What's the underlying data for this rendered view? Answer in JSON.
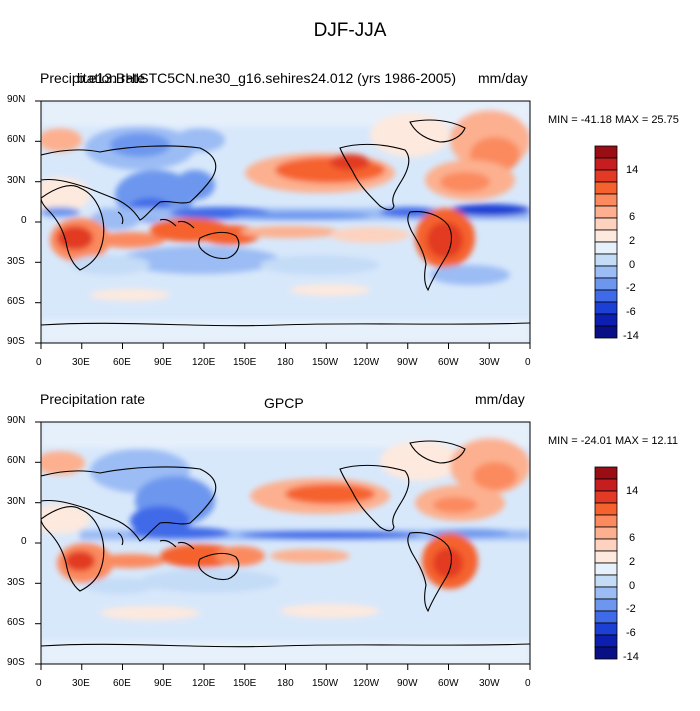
{
  "title": "DJF-JJA",
  "panels": [
    {
      "id": "model",
      "left_title": "Precipitation rate",
      "center_title": "b.e13.BHISTC5CN.ne30_g16.sehires24.012 (yrs 1986-2005)",
      "units": "mm/day",
      "minmax": "MIN = -41.18 MAX =  25.75"
    },
    {
      "id": "obs",
      "left_title": "Precipitation rate",
      "center_title": "GPCP",
      "units": "mm/day",
      "minmax": "MIN = -24.01 MAX =  12.11"
    }
  ],
  "axes": {
    "x_ticks": [
      "0",
      "30E",
      "60E",
      "90E",
      "120E",
      "150E",
      "180",
      "150W",
      "120W",
      "90W",
      "60W",
      "30W",
      "0"
    ],
    "y_ticks": [
      "90N",
      "60N",
      "30N",
      "0",
      "30S",
      "60S",
      "90S"
    ]
  },
  "colorbar": {
    "labels": [
      "14",
      "6",
      "2",
      "0",
      "-2",
      "-6",
      "-14"
    ],
    "colors": [
      "#9a0d14",
      "#c61d20",
      "#e23a24",
      "#f5622d",
      "#fb8a5e",
      "#fcb08f",
      "#fdd2be",
      "#fde9de",
      "#e7f1fb",
      "#c5dcf7",
      "#9bbcf4",
      "#6d97ee",
      "#3f6ae8",
      "#1d40d4",
      "#0c1fb0",
      "#090f84"
    ]
  },
  "colors": {
    "ocean_base": "#d8e8fb",
    "positive": "#f08360",
    "negative": "#5a86ec"
  }
}
